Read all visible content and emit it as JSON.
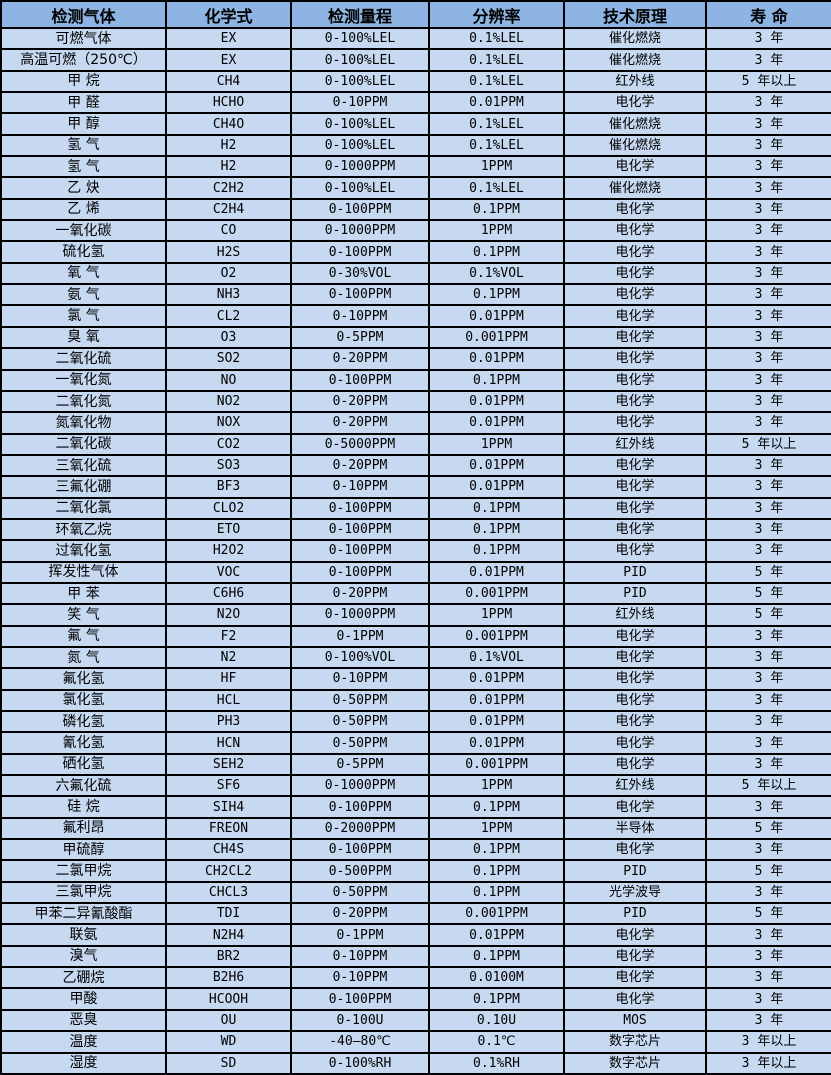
{
  "colors": {
    "header_bg": "#8DB4E2",
    "row_bg": "#C6D9F1",
    "border": "#000000",
    "text": "#000000"
  },
  "table": {
    "columns": [
      "检测气体",
      "化学式",
      "检测量程",
      "分辨率",
      "技术原理",
      "寿 命"
    ],
    "rows": [
      [
        "可燃气体",
        "EX",
        "0-100%LEL",
        "0.1%LEL",
        "催化燃烧",
        "3 年"
      ],
      [
        "高温可燃（250℃）",
        "EX",
        "0-100%LEL",
        "0.1%LEL",
        "催化燃烧",
        "3 年"
      ],
      [
        "甲 烷",
        "CH4",
        "0-100%LEL",
        "0.1%LEL",
        "红外线",
        "5 年以上"
      ],
      [
        "甲 醛",
        "HCHO",
        "0-10PPM",
        "0.01PPM",
        "电化学",
        "3 年"
      ],
      [
        "甲 醇",
        "CH4O",
        "0-100%LEL",
        "0.1%LEL",
        "催化燃烧",
        "3 年"
      ],
      [
        "氢 气",
        "H2",
        "0-100%LEL",
        "0.1%LEL",
        "催化燃烧",
        "3 年"
      ],
      [
        "氢 气",
        "H2",
        "0-1000PPM",
        "1PPM",
        "电化学",
        "3 年"
      ],
      [
        "乙 炔",
        "C2H2",
        "0-100%LEL",
        "0.1%LEL",
        "催化燃烧",
        "3 年"
      ],
      [
        "乙 烯",
        "C2H4",
        "0-100PPM",
        "0.1PPM",
        "电化学",
        "3 年"
      ],
      [
        "一氧化碳",
        "CO",
        "0-1000PPM",
        "1PPM",
        "电化学",
        "3 年"
      ],
      [
        "硫化氢",
        "H2S",
        "0-100PPM",
        "0.1PPM",
        "电化学",
        "3 年"
      ],
      [
        "氧 气",
        "O2",
        "0-30%VOL",
        "0.1%VOL",
        "电化学",
        "3 年"
      ],
      [
        "氨 气",
        "NH3",
        "0-100PPM",
        "0.1PPM",
        "电化学",
        "3 年"
      ],
      [
        "氯 气",
        "CL2",
        "0-10PPM",
        "0.01PPM",
        "电化学",
        "3 年"
      ],
      [
        "臭 氧",
        "O3",
        "0-5PPM",
        "0.001PPM",
        "电化学",
        "3 年"
      ],
      [
        "二氧化硫",
        "SO2",
        "0-20PPM",
        "0.01PPM",
        "电化学",
        "3 年"
      ],
      [
        "一氧化氮",
        "NO",
        "0-100PPM",
        "0.1PPM",
        "电化学",
        "3 年"
      ],
      [
        "二氧化氮",
        "NO2",
        "0-20PPM",
        "0.01PPM",
        "电化学",
        "3 年"
      ],
      [
        "氮氧化物",
        "NOX",
        "0-20PPM",
        "0.01PPM",
        "电化学",
        "3 年"
      ],
      [
        "二氧化碳",
        "CO2",
        "0-5000PPM",
        "1PPM",
        "红外线",
        "5 年以上"
      ],
      [
        "三氧化硫",
        "SO3",
        "0-20PPM",
        "0.01PPM",
        "电化学",
        "3 年"
      ],
      [
        "三氟化硼",
        "BF3",
        "0-10PPM",
        "0.01PPM",
        "电化学",
        "3 年"
      ],
      [
        "二氧化氯",
        "CLO2",
        "0-100PPM",
        "0.1PPM",
        "电化学",
        "3 年"
      ],
      [
        "环氧乙烷",
        "ETO",
        "0-100PPM",
        "0.1PPM",
        "电化学",
        "3 年"
      ],
      [
        "过氧化氢",
        "H2O2",
        "0-100PPM",
        "0.1PPM",
        "电化学",
        "3 年"
      ],
      [
        "挥发性气体",
        "VOC",
        "0-100PPM",
        "0.01PPM",
        "PID",
        "5 年"
      ],
      [
        "甲 苯",
        "C6H6",
        "0-20PPM",
        "0.001PPM",
        "PID",
        "5 年"
      ],
      [
        "笑 气",
        "N2O",
        "0-1000PPM",
        "1PPM",
        "红外线",
        "5 年"
      ],
      [
        "氟 气",
        "F2",
        "0-1PPM",
        "0.001PPM",
        "电化学",
        "3 年"
      ],
      [
        "氮 气",
        "N2",
        "0-100%VOL",
        "0.1%VOL",
        "电化学",
        "3 年"
      ],
      [
        "氟化氢",
        "HF",
        "0-10PPM",
        "0.01PPM",
        "电化学",
        "3 年"
      ],
      [
        "氯化氢",
        "HCL",
        "0-50PPM",
        "0.01PPM",
        "电化学",
        "3 年"
      ],
      [
        "磷化氢",
        "PH3",
        "0-50PPM",
        "0.01PPM",
        "电化学",
        "3 年"
      ],
      [
        "氰化氢",
        "HCN",
        "0-50PPM",
        "0.01PPM",
        "电化学",
        "3 年"
      ],
      [
        "硒化氢",
        "SEH2",
        "0-5PPM",
        "0.001PPM",
        "电化学",
        "3 年"
      ],
      [
        "六氟化硫",
        "SF6",
        "0-1000PPM",
        "1PPM",
        "红外线",
        "5 年以上"
      ],
      [
        "硅 烷",
        "SIH4",
        "0-100PPM",
        "0.1PPM",
        "电化学",
        "3 年"
      ],
      [
        "氟利昂",
        "FREON",
        "0-2000PPM",
        "1PPM",
        "半导体",
        "5 年"
      ],
      [
        "甲硫醇",
        "CH4S",
        "0-100PPM",
        "0.1PPM",
        "电化学",
        "3 年"
      ],
      [
        "二氯甲烷",
        "CH2CL2",
        "0-500PPM",
        "0.1PPM",
        "PID",
        "5 年"
      ],
      [
        "三氯甲烷",
        "CHCL3",
        "0-50PPM",
        "0.1PPM",
        "光学波导",
        "3 年"
      ],
      [
        "甲苯二异氰酸酯",
        "TDI",
        "0-20PPM",
        "0.001PPM",
        "PID",
        "5 年"
      ],
      [
        "联氨",
        "N2H4",
        "0-1PPM",
        "0.01PPM",
        "电化学",
        "3 年"
      ],
      [
        "溴气",
        "BR2",
        "0-10PPM",
        "0.1PPM",
        "电化学",
        "3 年"
      ],
      [
        "乙硼烷",
        "B2H6",
        "0-10PPM",
        "0.0100M",
        "电化学",
        "3 年"
      ],
      [
        "甲酸",
        "HCOOH",
        "0-100PPM",
        "0.1PPM",
        "电化学",
        "3 年"
      ],
      [
        "恶臭",
        "OU",
        "0-100U",
        "0.10U",
        "MOS",
        "3 年"
      ],
      [
        "温度",
        "WD",
        "-40—80℃",
        "0.1℃",
        "数字芯片",
        "3 年以上"
      ],
      [
        "湿度",
        "SD",
        "0-100%RH",
        "0.1%RH",
        "数字芯片",
        "3 年以上"
      ]
    ]
  }
}
